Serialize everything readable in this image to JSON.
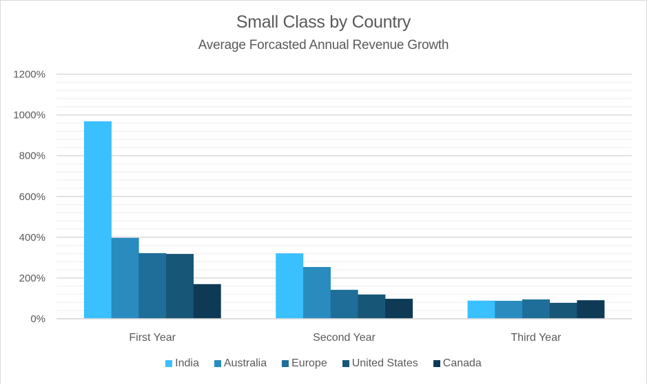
{
  "chart_data": {
    "type": "bar",
    "title": "Small Class by Country",
    "subtitle": "Average Forcasted Annual Revenue Growth",
    "xlabel": "",
    "ylabel": "",
    "categories": [
      "First Year",
      "Second Year",
      "Third Year"
    ],
    "series": [
      {
        "name": "India",
        "color": "#3BC0FF",
        "values": [
          969,
          321,
          89
        ]
      },
      {
        "name": "Australia",
        "color": "#298BBE",
        "values": [
          397,
          254,
          88
        ]
      },
      {
        "name": "Europe",
        "color": "#1F6E99",
        "values": [
          322,
          142,
          95
        ]
      },
      {
        "name": "United States",
        "color": "#175677",
        "values": [
          318,
          119,
          78
        ]
      },
      {
        "name": "Canada",
        "color": "#0E3A56",
        "values": [
          170,
          98,
          91
        ]
      }
    ],
    "ylim": [
      0,
      1200
    ],
    "y_major_step": 200,
    "y_minor_step": 40,
    "y_tick_labels": [
      "0%",
      "200%",
      "400%",
      "600%",
      "800%",
      "1000%",
      "1200%"
    ],
    "value_format": "percent",
    "grid": true,
    "legend_position": "bottom"
  }
}
